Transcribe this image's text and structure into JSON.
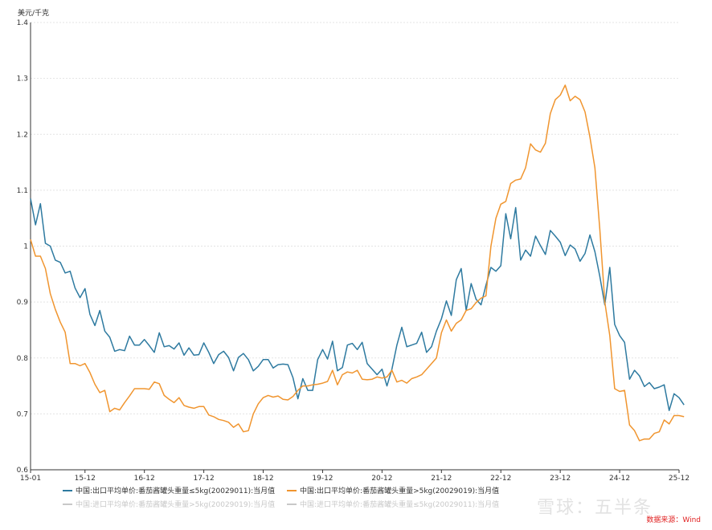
{
  "chart_data": {
    "type": "line",
    "unit_label": "美元/千克",
    "ylim": [
      0.6,
      1.4
    ],
    "yticks": [
      "0.6",
      "0.7",
      "0.8",
      "0.9",
      "1",
      "1.1",
      "1.2",
      "1.3",
      "1.4"
    ],
    "xtick_labels": [
      "15-01",
      "15-12",
      "16-12",
      "17-12",
      "18-12",
      "19-12",
      "20-12",
      "21-12",
      "22-12",
      "23-12",
      "24-12",
      "25-12"
    ],
    "xtick_index": [
      0,
      11,
      23,
      35,
      47,
      59,
      71,
      83,
      95,
      107,
      119,
      131
    ],
    "x_count": 132,
    "colors": {
      "blue": "#2e7aa0",
      "orange": "#f0952f",
      "grid": "#e3e3e3",
      "axis": "#333333",
      "inactive": "#c8c8c8"
    },
    "series": [
      {
        "name": "中国:出口平均单价:番茄酱罐头重量≤5kg(20029011):当月值",
        "color": "#2e7aa0",
        "visible": true,
        "values": [
          1.085,
          1.038,
          1.076,
          1.005,
          1.0,
          0.975,
          0.971,
          0.952,
          0.955,
          0.925,
          0.908,
          0.924,
          0.878,
          0.858,
          0.885,
          0.848,
          0.837,
          0.812,
          0.815,
          0.813,
          0.839,
          0.823,
          0.823,
          0.833,
          0.822,
          0.81,
          0.845,
          0.82,
          0.822,
          0.816,
          0.827,
          0.805,
          0.818,
          0.805,
          0.806,
          0.827,
          0.81,
          0.79,
          0.806,
          0.812,
          0.801,
          0.777,
          0.801,
          0.808,
          0.797,
          0.777,
          0.785,
          0.797,
          0.797,
          0.782,
          0.788,
          0.789,
          0.788,
          0.765,
          0.727,
          0.763,
          0.742,
          0.742,
          0.797,
          0.815,
          0.798,
          0.83,
          0.777,
          0.783,
          0.823,
          0.826,
          0.815,
          0.828,
          0.79,
          0.78,
          0.77,
          0.78,
          0.75,
          0.78,
          0.823,
          0.855,
          0.82,
          0.823,
          0.826,
          0.846,
          0.81,
          0.82,
          0.848,
          0.87,
          0.902,
          0.876,
          0.94,
          0.96,
          0.885,
          0.933,
          0.905,
          0.895,
          0.93,
          0.962,
          0.955,
          0.965,
          1.058,
          1.013,
          1.069,
          0.975,
          0.993,
          0.982,
          1.018,
          1.001,
          0.985,
          1.028,
          1.018,
          1.007,
          0.983,
          1.002,
          0.995,
          0.973,
          0.987,
          1.02,
          0.99,
          0.946,
          0.895,
          0.962,
          0.86,
          0.84,
          0.828,
          0.762,
          0.778,
          0.768,
          0.749,
          0.756,
          0.745,
          0.748,
          0.752,
          0.706,
          0.736,
          0.729,
          0.716
        ]
      },
      {
        "name": "中国:出口平均单价:番茄酱罐头重量>5kg(20029019):当月值",
        "color": "#f0952f",
        "visible": true,
        "values": [
          1.012,
          0.982,
          0.982,
          0.96,
          0.915,
          0.887,
          0.864,
          0.846,
          0.79,
          0.79,
          0.786,
          0.79,
          0.774,
          0.753,
          0.738,
          0.742,
          0.704,
          0.71,
          0.707,
          0.72,
          0.732,
          0.745,
          0.745,
          0.745,
          0.744,
          0.757,
          0.754,
          0.733,
          0.726,
          0.72,
          0.729,
          0.715,
          0.712,
          0.71,
          0.713,
          0.713,
          0.698,
          0.695,
          0.69,
          0.688,
          0.685,
          0.676,
          0.682,
          0.668,
          0.67,
          0.7,
          0.718,
          0.729,
          0.733,
          0.73,
          0.732,
          0.726,
          0.725,
          0.731,
          0.742,
          0.75,
          0.75,
          0.752,
          0.753,
          0.755,
          0.758,
          0.778,
          0.752,
          0.77,
          0.775,
          0.773,
          0.778,
          0.762,
          0.761,
          0.762,
          0.766,
          0.764,
          0.766,
          0.778,
          0.757,
          0.76,
          0.755,
          0.763,
          0.766,
          0.77,
          0.78,
          0.79,
          0.8,
          0.845,
          0.868,
          0.848,
          0.862,
          0.868,
          0.885,
          0.888,
          0.899,
          0.907,
          0.911,
          1.0,
          1.05,
          1.075,
          1.08,
          1.112,
          1.118,
          1.12,
          1.14,
          1.183,
          1.172,
          1.168,
          1.184,
          1.237,
          1.262,
          1.27,
          1.288,
          1.26,
          1.268,
          1.262,
          1.24,
          1.195,
          1.14,
          1.03,
          0.9,
          0.84,
          0.745,
          0.74,
          0.742,
          0.68,
          0.67,
          0.652,
          0.655,
          0.655,
          0.665,
          0.668,
          0.689,
          0.682,
          0.697,
          0.697,
          0.695
        ]
      },
      {
        "name": "中国:进口平均单价:番茄酱罐头重量>5kg(20029019):当月值",
        "color": "#c8c8c8",
        "visible": false,
        "values": []
      },
      {
        "name": "中国:进口平均单价:番茄酱罐头重量≤5kg(20029011):当月值",
        "color": "#c8c8c8",
        "visible": false,
        "values": []
      }
    ]
  },
  "source_text": "数据来源：Wind",
  "watermark_text": "雪球：五半条"
}
